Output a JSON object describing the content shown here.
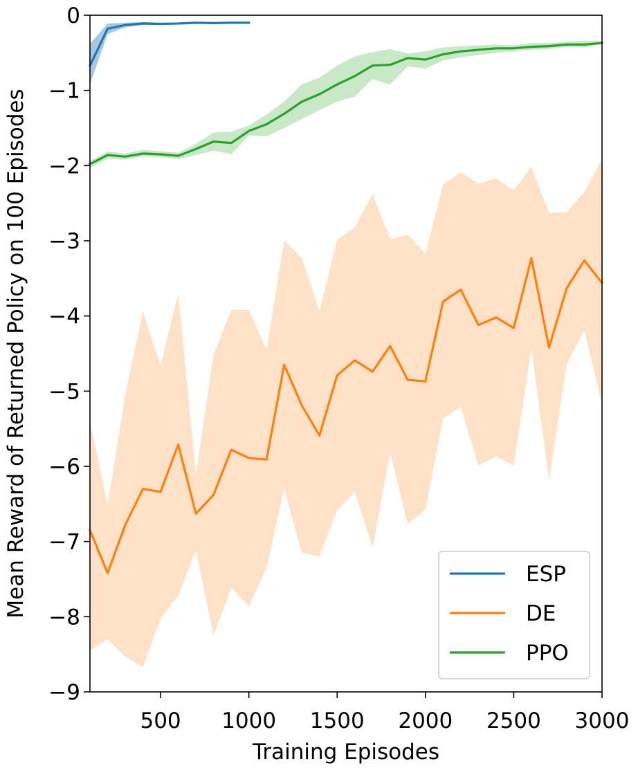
{
  "chart_data": {
    "type": "line",
    "title": "",
    "xlabel": "Training Episodes",
    "ylabel": "Mean Reward of Returned Policy on 100 Episodes",
    "xlim": [
      100,
      3000
    ],
    "ylim": [
      -9,
      0
    ],
    "xticks": [
      500,
      1000,
      1500,
      2000,
      2500,
      3000
    ],
    "yticks": [
      0,
      -1,
      -2,
      -3,
      -4,
      -5,
      -6,
      -7,
      -8,
      -9
    ],
    "xtick_labels": [
      "500",
      "1000",
      "1500",
      "2000",
      "2500",
      "3000"
    ],
    "ytick_labels": [
      "0",
      "−1",
      "−2",
      "−3",
      "−4",
      "−5",
      "−6",
      "−7",
      "−8",
      "−9"
    ],
    "grid": false,
    "legend_position": "bottom-right",
    "series": [
      {
        "name": "ESP",
        "color": "#1f77b4",
        "band_color": "#a6c8e3",
        "x": [
          100,
          200,
          300,
          400,
          500,
          600,
          700,
          800,
          900,
          1000
        ],
        "y": [
          -0.67,
          -0.18,
          -0.13,
          -0.11,
          -0.115,
          -0.11,
          -0.1,
          -0.105,
          -0.1,
          -0.1
        ],
        "lower": [
          -0.92,
          -0.25,
          -0.16,
          -0.13,
          -0.13,
          -0.12,
          -0.11,
          -0.11,
          -0.11,
          -0.11
        ],
        "upper": [
          -0.38,
          -0.11,
          -0.1,
          -0.09,
          -0.1,
          -0.1,
          -0.09,
          -0.1,
          -0.09,
          -0.09
        ]
      },
      {
        "name": "DE",
        "color": "#ff7f0e",
        "band_color": "#ffe1c7",
        "x": [
          100,
          200,
          300,
          400,
          500,
          600,
          700,
          800,
          900,
          1000,
          1100,
          1200,
          1300,
          1400,
          1500,
          1600,
          1700,
          1800,
          1900,
          2000,
          2100,
          2200,
          2300,
          2400,
          2500,
          2600,
          2700,
          2800,
          2900,
          3000
        ],
        "y": [
          -6.85,
          -7.42,
          -6.78,
          -6.3,
          -6.34,
          -5.71,
          -6.63,
          -6.38,
          -5.78,
          -5.89,
          -5.91,
          -4.65,
          -5.19,
          -5.59,
          -4.79,
          -4.59,
          -4.74,
          -4.4,
          -4.85,
          -4.87,
          -3.81,
          -3.65,
          -4.12,
          -4.02,
          -4.16,
          -3.23,
          -4.42,
          -3.63,
          -3.26,
          -3.56
        ],
        "lower": [
          -8.45,
          -8.3,
          -8.53,
          -8.67,
          -8.02,
          -7.72,
          -7.12,
          -8.25,
          -7.62,
          -7.86,
          -7.35,
          -6.3,
          -7.15,
          -7.2,
          -6.58,
          -6.34,
          -7.08,
          -5.82,
          -6.77,
          -6.57,
          -5.36,
          -5.21,
          -5.99,
          -5.87,
          -5.99,
          -4.43,
          -6.18,
          -4.64,
          -4.19,
          -5.17
        ],
        "upper": [
          -5.4,
          -6.52,
          -5.05,
          -3.94,
          -4.66,
          -3.7,
          -6.12,
          -4.52,
          -3.92,
          -3.92,
          -4.45,
          -3.0,
          -3.23,
          -3.94,
          -2.99,
          -2.82,
          -2.38,
          -2.98,
          -2.92,
          -3.17,
          -2.25,
          -2.09,
          -2.24,
          -2.17,
          -2.33,
          -2.02,
          -2.63,
          -2.62,
          -2.35,
          -1.92
        ]
      },
      {
        "name": "PPO",
        "color": "#2ca02c",
        "band_color": "#c8e8c8",
        "x": [
          100,
          200,
          300,
          400,
          500,
          600,
          700,
          800,
          900,
          1000,
          1100,
          1200,
          1300,
          1400,
          1500,
          1600,
          1700,
          1800,
          1900,
          2000,
          2100,
          2200,
          2300,
          2400,
          2500,
          2600,
          2700,
          2800,
          2900,
          3000
        ],
        "y": [
          -1.98,
          -1.86,
          -1.88,
          -1.84,
          -1.85,
          -1.87,
          -1.78,
          -1.68,
          -1.7,
          -1.54,
          -1.45,
          -1.31,
          -1.15,
          -1.05,
          -0.92,
          -0.81,
          -0.67,
          -0.66,
          -0.57,
          -0.59,
          -0.52,
          -0.48,
          -0.46,
          -0.44,
          -0.44,
          -0.42,
          -0.41,
          -0.39,
          -0.39,
          -0.37
        ],
        "lower": [
          -2.03,
          -1.91,
          -1.92,
          -1.88,
          -1.89,
          -1.91,
          -1.86,
          -1.8,
          -1.85,
          -1.6,
          -1.61,
          -1.5,
          -1.38,
          -1.26,
          -1.15,
          -1.08,
          -0.85,
          -0.92,
          -0.68,
          -0.71,
          -0.6,
          -0.56,
          -0.53,
          -0.5,
          -0.48,
          -0.46,
          -0.45,
          -0.42,
          -0.43,
          -0.38
        ],
        "upper": [
          -1.94,
          -1.81,
          -1.84,
          -1.79,
          -1.81,
          -1.83,
          -1.71,
          -1.56,
          -1.55,
          -1.47,
          -1.32,
          -1.15,
          -0.92,
          -0.83,
          -0.67,
          -0.55,
          -0.49,
          -0.45,
          -0.51,
          -0.48,
          -0.43,
          -0.41,
          -0.4,
          -0.39,
          -0.4,
          -0.37,
          -0.37,
          -0.35,
          -0.34,
          -0.34
        ]
      }
    ]
  }
}
